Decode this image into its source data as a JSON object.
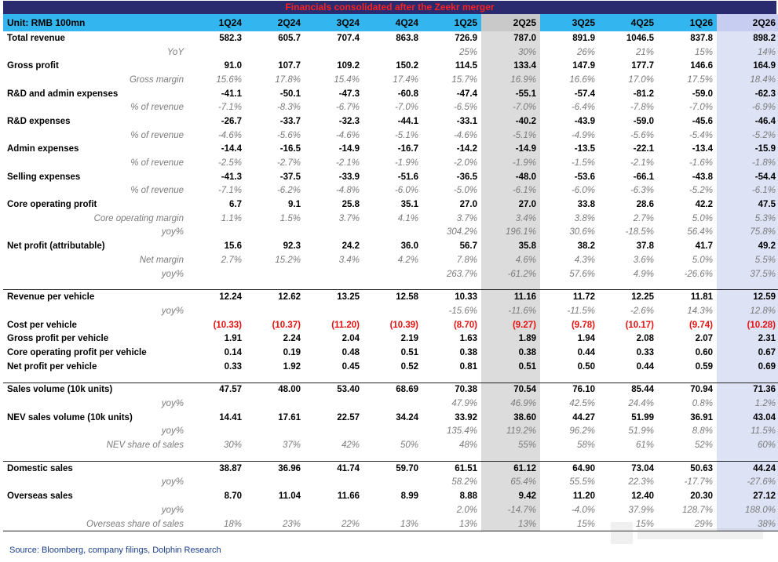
{
  "banner": "Financials consolidated after the Zeekr merger",
  "header": {
    "unit_label": "Unit: RMB 100mn",
    "periods": [
      "1Q24",
      "2Q24",
      "3Q24",
      "4Q24",
      "1Q25",
      "2Q25",
      "3Q25",
      "4Q25",
      "1Q26",
      "2Q26"
    ]
  },
  "sections": [
    {
      "rows": [
        {
          "label": "Total revenue",
          "type": "main",
          "values": [
            "582.3",
            "605.7",
            "707.4",
            "863.8",
            "726.9",
            "787.0",
            "891.9",
            "1046.5",
            "837.8",
            "898.2"
          ]
        },
        {
          "label": "YoY",
          "type": "sub",
          "values": [
            "",
            "",
            "",
            "",
            "25%",
            "30%",
            "26%",
            "21%",
            "15%",
            "14%"
          ]
        },
        {
          "label": "Gross profit",
          "type": "main",
          "values": [
            "91.0",
            "107.7",
            "109.2",
            "150.2",
            "114.5",
            "133.4",
            "147.9",
            "177.7",
            "146.6",
            "164.9"
          ]
        },
        {
          "label": "Gross margin",
          "type": "sub",
          "values": [
            "15.6%",
            "17.8%",
            "15.4%",
            "17.4%",
            "15.7%",
            "16.9%",
            "16.6%",
            "17.0%",
            "17.5%",
            "18.4%"
          ]
        },
        {
          "label": "R&D and admin expenses",
          "type": "main",
          "values": [
            "-41.1",
            "-50.1",
            "-47.3",
            "-60.8",
            "-47.4",
            "-55.1",
            "-57.4",
            "-81.2",
            "-59.0",
            "-62.3"
          ]
        },
        {
          "label": "% of revenue",
          "type": "sub",
          "values": [
            "-7.1%",
            "-8.3%",
            "-6.7%",
            "-7.0%",
            "-6.5%",
            "-7.0%",
            "-6.4%",
            "-7.8%",
            "-7.0%",
            "-6.9%"
          ]
        },
        {
          "label": "R&D expenses",
          "type": "main",
          "values": [
            "-26.7",
            "-33.7",
            "-32.3",
            "-44.1",
            "-33.1",
            "-40.2",
            "-43.9",
            "-59.0",
            "-45.6",
            "-46.4"
          ]
        },
        {
          "label": "% of revenue",
          "type": "sub",
          "values": [
            "-4.6%",
            "-5.6%",
            "-4.6%",
            "-5.1%",
            "-4.6%",
            "-5.1%",
            "-4.9%",
            "-5.6%",
            "-5.4%",
            "-5.2%"
          ]
        },
        {
          "label": "Admin expenses",
          "type": "main",
          "values": [
            "-14.4",
            "-16.5",
            "-14.9",
            "-16.7",
            "-14.2",
            "-14.9",
            "-13.5",
            "-22.1",
            "-13.4",
            "-15.9"
          ]
        },
        {
          "label": "% of revenue",
          "type": "sub",
          "values": [
            "-2.5%",
            "-2.7%",
            "-2.1%",
            "-1.9%",
            "-2.0%",
            "-1.9%",
            "-1.5%",
            "-2.1%",
            "-1.6%",
            "-1.8%"
          ]
        },
        {
          "label": "Selling expenses",
          "type": "main",
          "values": [
            "-41.3",
            "-37.5",
            "-33.9",
            "-51.6",
            "-36.5",
            "-48.0",
            "-53.6",
            "-66.1",
            "-43.8",
            "-54.4"
          ]
        },
        {
          "label": "% of revenue",
          "type": "sub",
          "values": [
            "-7.1%",
            "-6.2%",
            "-4.8%",
            "-6.0%",
            "-5.0%",
            "-6.1%",
            "-6.0%",
            "-6.3%",
            "-5.2%",
            "-6.1%"
          ]
        },
        {
          "label": "Core operating profit",
          "type": "main",
          "values": [
            "6.7",
            "9.1",
            "25.8",
            "35.1",
            "27.0",
            "27.0",
            "33.8",
            "28.6",
            "42.2",
            "47.5"
          ]
        },
        {
          "label": "Core operating margin",
          "type": "sub",
          "values": [
            "1.1%",
            "1.5%",
            "3.7%",
            "4.1%",
            "3.7%",
            "3.4%",
            "3.8%",
            "2.7%",
            "5.0%",
            "5.3%"
          ]
        },
        {
          "label": "yoy%",
          "type": "sub",
          "values": [
            "",
            "",
            "",
            "",
            "304.2%",
            "196.1%",
            "30.6%",
            "-18.5%",
            "56.4%",
            "75.8%"
          ]
        },
        {
          "label": "Net profit (attributable)",
          "type": "main",
          "values": [
            "15.6",
            "92.3",
            "24.2",
            "36.0",
            "56.7",
            "35.8",
            "38.2",
            "37.8",
            "41.7",
            "49.2"
          ]
        },
        {
          "label": "Net margin",
          "type": "sub",
          "values": [
            "2.7%",
            "15.2%",
            "3.4%",
            "4.2%",
            "7.8%",
            "4.6%",
            "4.3%",
            "3.6%",
            "5.0%",
            "5.5%"
          ]
        },
        {
          "label": "yoy%",
          "type": "sub",
          "values": [
            "",
            "",
            "",
            "",
            "263.7%",
            "-61.2%",
            "57.6%",
            "4.9%",
            "-26.6%",
            "37.5%"
          ]
        }
      ]
    },
    {
      "rows": [
        {
          "label": "Revenue per vehicle",
          "type": "main",
          "values": [
            "12.24",
            "12.62",
            "13.25",
            "12.58",
            "10.33",
            "11.16",
            "11.72",
            "12.25",
            "11.81",
            "12.59"
          ]
        },
        {
          "label": "yoy%",
          "type": "sub",
          "values": [
            "",
            "",
            "",
            "",
            "-15.6%",
            "-11.6%",
            "-11.5%",
            "-2.6%",
            "14.3%",
            "12.8%"
          ]
        },
        {
          "label": "Cost per vehicle",
          "type": "main",
          "red": true,
          "values": [
            "(10.33)",
            "(10.37)",
            "(11.20)",
            "(10.39)",
            "(8.70)",
            "(9.27)",
            "(9.78)",
            "(10.17)",
            "(9.74)",
            "(10.28)"
          ]
        },
        {
          "label": "Gross profit per vehicle",
          "type": "main",
          "values": [
            "1.91",
            "2.24",
            "2.04",
            "2.19",
            "1.63",
            "1.89",
            "1.94",
            "2.08",
            "2.07",
            "2.31"
          ]
        },
        {
          "label": "Core operating profit per vehicle",
          "type": "main",
          "values": [
            "0.14",
            "0.19",
            "0.48",
            "0.51",
            "0.38",
            "0.38",
            "0.44",
            "0.33",
            "0.60",
            "0.67"
          ]
        },
        {
          "label": "Net profit per vehicle",
          "type": "main",
          "values": [
            "0.33",
            "1.92",
            "0.45",
            "0.52",
            "0.81",
            "0.51",
            "0.50",
            "0.44",
            "0.59",
            "0.69"
          ]
        }
      ]
    },
    {
      "rows": [
        {
          "label": "Sales volume (10k units)",
          "type": "main",
          "plain": true,
          "values": [
            "47.57",
            "48.00",
            "53.40",
            "68.69",
            "70.38",
            "70.54",
            "76.10",
            "85.44",
            "70.94",
            "71.36"
          ]
        },
        {
          "label": "yoy%",
          "type": "sub",
          "values": [
            "",
            "",
            "",
            "",
            "47.9%",
            "46.9%",
            "42.5%",
            "24.4%",
            "0.8%",
            "1.2%"
          ]
        },
        {
          "label": "NEV sales volume (10k units)",
          "type": "main",
          "plain": true,
          "values": [
            "14.41",
            "17.61",
            "22.57",
            "34.24",
            "33.92",
            "38.60",
            "44.27",
            "51.99",
            "36.91",
            "43.04"
          ]
        },
        {
          "label": "yoy%",
          "type": "sub",
          "values": [
            "",
            "",
            "",
            "",
            "135.4%",
            "119.2%",
            "96.2%",
            "51.9%",
            "8.8%",
            "11.5%"
          ]
        },
        {
          "label": "NEV share of sales",
          "type": "sub",
          "values": [
            "30%",
            "37%",
            "42%",
            "50%",
            "48%",
            "55%",
            "58%",
            "61%",
            "52%",
            "60%"
          ]
        }
      ]
    },
    {
      "rows": [
        {
          "label": "Domestic sales",
          "type": "main",
          "plain": true,
          "values": [
            "38.87",
            "36.96",
            "41.74",
            "59.70",
            "61.51",
            "61.12",
            "64.90",
            "73.04",
            "50.63",
            "44.24"
          ]
        },
        {
          "label": "yoy%",
          "type": "sub",
          "values": [
            "",
            "",
            "",
            "",
            "58.2%",
            "65.4%",
            "55.5%",
            "22.3%",
            "-17.7%",
            "-27.6%"
          ]
        },
        {
          "label": "Overseas sales",
          "type": "main",
          "plain": true,
          "values": [
            "8.70",
            "11.04",
            "11.66",
            "8.99",
            "8.88",
            "9.42",
            "11.20",
            "12.40",
            "20.30",
            "27.12"
          ]
        },
        {
          "label": "yoy%",
          "type": "sub",
          "values": [
            "",
            "",
            "",
            "",
            "2.0%",
            "-14.7%",
            "-4.0%",
            "37.9%",
            "128.7%",
            "188.0%"
          ]
        },
        {
          "label": "Overseas share of sales",
          "type": "sub",
          "values": [
            "18%",
            "23%",
            "22%",
            "13%",
            "13%",
            "13%",
            "15%",
            "15%",
            "29%",
            "38%"
          ]
        }
      ]
    }
  ],
  "highlight": {
    "grey_column_index": 5,
    "blue_column_index": 9,
    "grey": "#dcdcdc",
    "blue": "#dde2f5",
    "header_blue": "#33b5ef",
    "negative_red": "#e81010"
  },
  "source": "Source: Bloomberg, company filings, Dolphin Research"
}
